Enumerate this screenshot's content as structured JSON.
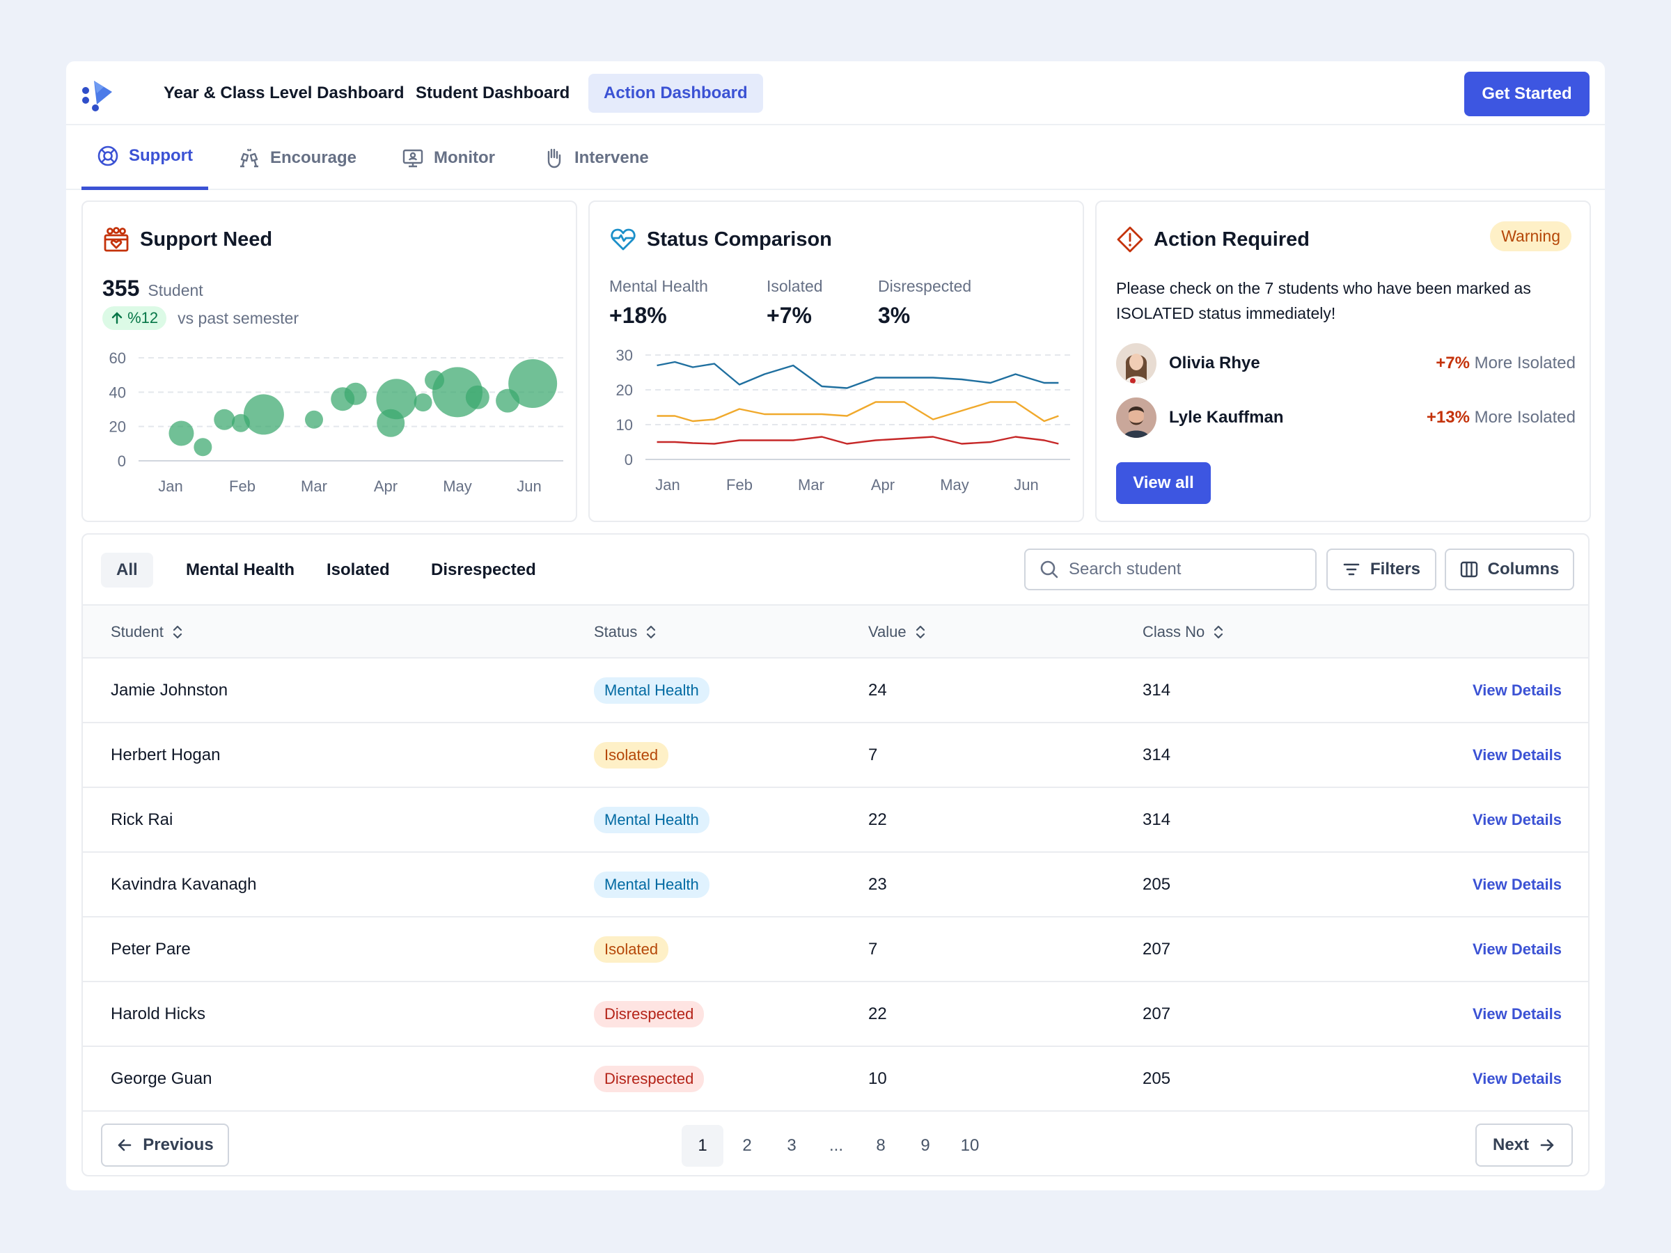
{
  "nav": {
    "tabs": [
      {
        "label": "Year & Class Level Dashboard"
      },
      {
        "label": "Student Dashboard"
      },
      {
        "label": "Action Dashboard"
      }
    ],
    "cta": "Get Started"
  },
  "subnav": {
    "tabs": [
      {
        "label": "Support",
        "icon": "lifebuoy-icon"
      },
      {
        "label": "Encourage",
        "icon": "cheers-icon"
      },
      {
        "label": "Monitor",
        "icon": "monitor-icon"
      },
      {
        "label": "Intervene",
        "icon": "hand-icon"
      }
    ]
  },
  "support_card": {
    "title": "Support Need",
    "count": "355",
    "count_unit": "Student",
    "delta": "%12",
    "delta_note": "vs past semester"
  },
  "status_card": {
    "title": "Status Comparison",
    "stats": [
      {
        "label": "Mental Health",
        "value": "+18%"
      },
      {
        "label": "Isolated",
        "value": "+7%"
      },
      {
        "label": "Disrespected",
        "value": "3%"
      }
    ]
  },
  "action_card": {
    "title": "Action Required",
    "badge": "Warning",
    "message": "Please check on the 7 students who have been marked as ISOLATED status immediately!",
    "people": [
      {
        "name": "Olivia Rhye",
        "delta": "+7%",
        "note": "More Isolated"
      },
      {
        "name": "Lyle Kauffman",
        "delta": "+13%",
        "note": "More Isolated"
      }
    ],
    "button": "View all"
  },
  "chart_data": [
    {
      "type": "scatter",
      "subtype": "bubble",
      "categories": [
        "Jan",
        "Feb",
        "Mar",
        "Apr",
        "May",
        "Jun"
      ],
      "ylim": [
        0,
        60
      ],
      "yticks": [
        0,
        20,
        40,
        60
      ],
      "color": "#3aa76d",
      "points": [
        {
          "x": 1.15,
          "y": 16,
          "r": 18
        },
        {
          "x": 1.45,
          "y": 8,
          "r": 13
        },
        {
          "x": 1.75,
          "y": 24,
          "r": 15
        },
        {
          "x": 1.98,
          "y": 22,
          "r": 13
        },
        {
          "x": 2.3,
          "y": 27,
          "r": 29
        },
        {
          "x": 3.0,
          "y": 24,
          "r": 13
        },
        {
          "x": 3.4,
          "y": 36,
          "r": 17
        },
        {
          "x": 3.58,
          "y": 39,
          "r": 16
        },
        {
          "x": 4.15,
          "y": 36,
          "r": 29
        },
        {
          "x": 4.07,
          "y": 22,
          "r": 20
        },
        {
          "x": 4.52,
          "y": 34,
          "r": 13
        },
        {
          "x": 4.68,
          "y": 47,
          "r": 14
        },
        {
          "x": 5.0,
          "y": 40,
          "r": 36
        },
        {
          "x": 5.28,
          "y": 37,
          "r": 17
        },
        {
          "x": 5.7,
          "y": 35,
          "r": 17
        },
        {
          "x": 6.05,
          "y": 45,
          "r": 35
        }
      ]
    },
    {
      "type": "line",
      "categories": [
        "Jan",
        "Feb",
        "Mar",
        "Apr",
        "May",
        "Jun"
      ],
      "ylim": [
        0,
        30
      ],
      "yticks": [
        0,
        10,
        20,
        30
      ],
      "x": [
        0.85,
        1.1,
        1.35,
        1.65,
        2.0,
        2.35,
        2.75,
        3.15,
        3.5,
        3.9,
        4.3,
        4.7,
        5.1,
        5.5,
        5.85,
        6.25,
        6.45
      ],
      "series": [
        {
          "color": "#1f6f9f",
          "values": [
            27,
            28,
            26.5,
            27.5,
            21.5,
            24.5,
            27,
            21,
            20.5,
            23.5,
            23.5,
            23.5,
            23,
            22,
            24.5,
            22,
            22
          ]
        },
        {
          "color": "#f0a92c",
          "values": [
            12.5,
            12.5,
            11,
            11.5,
            14.5,
            13,
            13,
            13,
            12.5,
            16.5,
            16.5,
            11.5,
            14,
            16.5,
            16.5,
            11,
            12.5
          ]
        },
        {
          "color": "#c62828",
          "values": [
            5,
            5,
            4.7,
            4.5,
            5.5,
            5.5,
            5.5,
            6.5,
            4.5,
            5.5,
            6,
            6.5,
            4.5,
            5,
            6.5,
            5.5,
            4.5
          ]
        }
      ]
    }
  ],
  "table": {
    "filters": [
      {
        "label": "All"
      },
      {
        "label": "Mental Health"
      },
      {
        "label": "Isolated"
      },
      {
        "label": "Disrespected"
      }
    ],
    "search_placeholder": "Search student",
    "filters_button": "Filters",
    "columns_button": "Columns",
    "headers": {
      "student": "Student",
      "status": "Status",
      "value": "Value",
      "class_no": "Class No"
    },
    "action_label": "View Details",
    "rows": [
      {
        "student": "Jamie Johnston",
        "status": "Mental Health",
        "kind": "mental",
        "value": "24",
        "class_no": "314"
      },
      {
        "student": "Herbert Hogan",
        "status": "Isolated",
        "kind": "isolated",
        "value": "7",
        "class_no": "314"
      },
      {
        "student": "Rick Rai",
        "status": "Mental Health",
        "kind": "mental",
        "value": "22",
        "class_no": "314"
      },
      {
        "student": "Kavindra Kavanagh",
        "status": "Mental Health",
        "kind": "mental",
        "value": "23",
        "class_no": "205"
      },
      {
        "student": "Peter Pare",
        "status": "Isolated",
        "kind": "isolated",
        "value": "7",
        "class_no": "207"
      },
      {
        "student": "Harold Hicks",
        "status": "Disrespected",
        "kind": "disrespected",
        "value": "22",
        "class_no": "207"
      },
      {
        "student": "George Guan",
        "status": "Disrespected",
        "kind": "disrespected",
        "value": "10",
        "class_no": "205"
      }
    ]
  },
  "pagination": {
    "previous": "Previous",
    "next": "Next",
    "pages": [
      "1",
      "2",
      "3",
      "...",
      "8",
      "9",
      "10"
    ],
    "current": "1"
  }
}
